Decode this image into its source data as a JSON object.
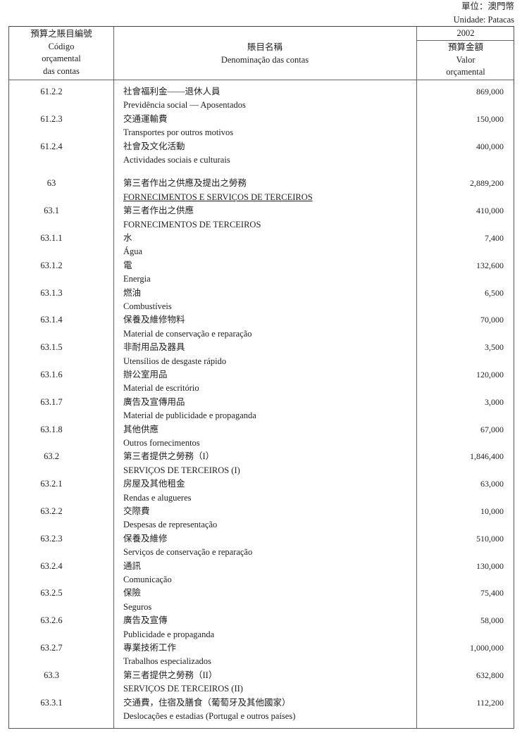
{
  "unit": {
    "zh": "單位：澳門幣",
    "pt": "Unidade: Patacas"
  },
  "header": {
    "code": [
      "預算之賬目編號",
      "Código",
      "orçamental",
      "das contas"
    ],
    "name": [
      "賬目名稱",
      "Denominação das contas"
    ],
    "year": "2002",
    "value": [
      "預算金額",
      "Valor",
      "orçamental"
    ]
  },
  "rows": [
    {
      "code": "61.2.2",
      "zh": "社會福利金——退休人員",
      "pt": "Previdência social — Aposentados",
      "amount": "869,000"
    },
    {
      "code": "61.2.3",
      "zh": "交通運輸費",
      "pt": "Transportes por outros motivos",
      "amount": "150,000"
    },
    {
      "code": "61.2.4",
      "zh": "社會及文化活動",
      "pt": "Actividades sociais e culturais",
      "amount": "400,000"
    },
    {
      "code": "63",
      "zh": "第三者作出之供應及提出之勞務",
      "pt": "FORNECIMENTOS E SERVIÇOS DE TERCEIROS",
      "amount": "2,889,200",
      "gap": true,
      "underline": true
    },
    {
      "code": "63.1",
      "zh": "第三者作出之供應",
      "pt": "FORNECIMENTOS DE TERCEIROS",
      "amount": "410,000"
    },
    {
      "code": "63.1.1",
      "zh": "水",
      "pt": "Água",
      "amount": "7,400"
    },
    {
      "code": "63.1.2",
      "zh": "電",
      "pt": "Energia",
      "amount": "132,600"
    },
    {
      "code": "63.1.3",
      "zh": "燃油",
      "pt": "Combustíveis",
      "amount": "6,500"
    },
    {
      "code": "63.1.4",
      "zh": "保養及維修物料",
      "pt": "Material de conservação e reparação",
      "amount": "70,000"
    },
    {
      "code": "63.1.5",
      "zh": "非耐用品及器具",
      "pt": "Utensílios de desgaste rápido",
      "amount": "3,500"
    },
    {
      "code": "63.1.6",
      "zh": "辦公室用品",
      "pt": "Material de escritório",
      "amount": "120,000"
    },
    {
      "code": "63.1.7",
      "zh": "廣告及宣傳用品",
      "pt": "Material de publicidade e propaganda",
      "amount": "3,000"
    },
    {
      "code": "63.1.8",
      "zh": "其他供應",
      "pt": "Outros fornecimentos",
      "amount": "67,000"
    },
    {
      "code": "63.2",
      "zh": "第三者提供之勞務（I）",
      "pt": "SERVIÇOS DE TERCEIROS (I)",
      "amount": "1,846,400"
    },
    {
      "code": "63.2.1",
      "zh": "房屋及其他租金",
      "pt": "Rendas e alugueres",
      "amount": "63,000"
    },
    {
      "code": "63.2.2",
      "zh": "交際費",
      "pt": "Despesas de representação",
      "amount": "10,000"
    },
    {
      "code": "63.2.3",
      "zh": "保養及維修",
      "pt": "Serviços de conservação e reparação",
      "amount": "510,000"
    },
    {
      "code": "63.2.4",
      "zh": "通訊",
      "pt": "Comunicação",
      "amount": "130,000"
    },
    {
      "code": "63.2.5",
      "zh": "保險",
      "pt": "Seguros",
      "amount": "75,400"
    },
    {
      "code": "63.2.6",
      "zh": "廣告及宣傳",
      "pt": "Publicidade e propaganda",
      "amount": "58,000"
    },
    {
      "code": "63.2.7",
      "zh": "專業技術工作",
      "pt": "Trabalhos especializados",
      "amount": "1,000,000"
    },
    {
      "code": "63.3",
      "zh": "第三者提供之勞務（II）",
      "pt": "SERVIÇOS DE TERCEIROS (II)",
      "amount": "632,800"
    },
    {
      "code": "63.3.1",
      "zh": "交通費，住宿及膳食（葡萄牙及其他國家）",
      "pt": "Deslocações e estadias (Portugal e outros países)",
      "amount": "112,200"
    }
  ]
}
